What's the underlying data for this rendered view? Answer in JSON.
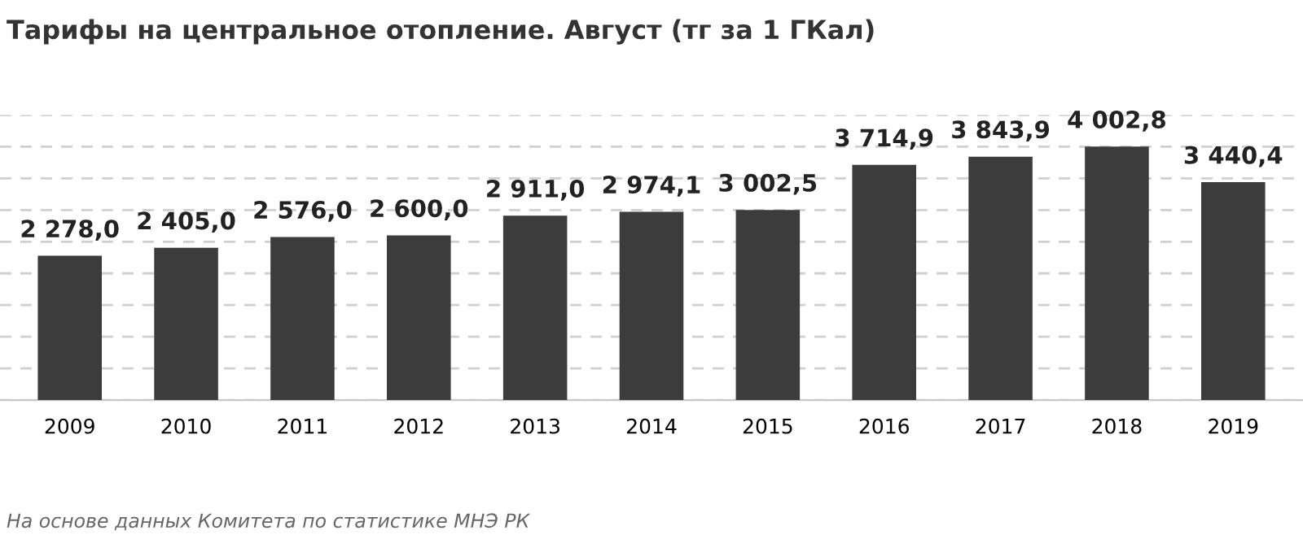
{
  "chart_data": {
    "type": "bar",
    "title": "Тарифы на центральное отопление. Август (тг за 1 ГКал)",
    "categories": [
      "2009",
      "2010",
      "2011",
      "2012",
      "2013",
      "2014",
      "2015",
      "2016",
      "2017",
      "2018",
      "2019"
    ],
    "values": [
      2278.0,
      2405.0,
      2576.0,
      2600.0,
      2911.0,
      2974.1,
      3002.5,
      3714.9,
      3843.9,
      4002.8,
      3440.4
    ],
    "value_labels": [
      "2 278,0",
      "2 405,0",
      "2 576,0",
      "2 600,0",
      "2 911,0",
      "2 974,1",
      "3 002,5",
      "3 714,9",
      "3 843,9",
      "4 002,8",
      "3 440,4"
    ],
    "color": "#3c3c3c",
    "ylim": [
      0,
      4500
    ],
    "yticks": [
      {
        "value": 0,
        "label": null
      },
      {
        "value": 500,
        "label": null
      },
      {
        "value": 1000,
        "label": null
      },
      {
        "value": 1500,
        "label": null
      },
      {
        "value": 2000,
        "label": null
      },
      {
        "value": 2500,
        "label": null
      },
      {
        "value": 3000,
        "label": null
      },
      {
        "value": 3500,
        "label": null
      },
      {
        "value": 4000,
        "label": null
      },
      {
        "value": 4500,
        "label": null
      }
    ],
    "tick_labels": "x",
    "grid": "y",
    "annotations": [
      "На основе данных Комитета по статистике МНЭ РК"
    ]
  }
}
